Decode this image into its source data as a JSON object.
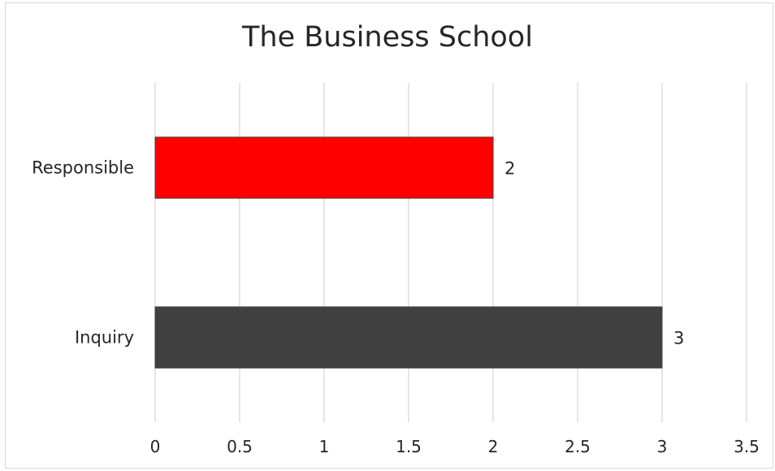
{
  "chart_data": {
    "type": "bar",
    "orientation": "horizontal",
    "title": "The Business School",
    "xlabel": "",
    "ylabel": "",
    "categories": [
      "Responsible",
      "Inquiry"
    ],
    "values": [
      2,
      3
    ],
    "bar_colors": [
      "#ff0000",
      "#404040"
    ],
    "data_labels": [
      "2",
      "3"
    ],
    "xlim": [
      0,
      3.5
    ],
    "x_ticks": [
      "0",
      "0.5",
      "1",
      "1.5",
      "2",
      "2.5",
      "3",
      "3.5"
    ],
    "grid": true,
    "legend": "none"
  }
}
